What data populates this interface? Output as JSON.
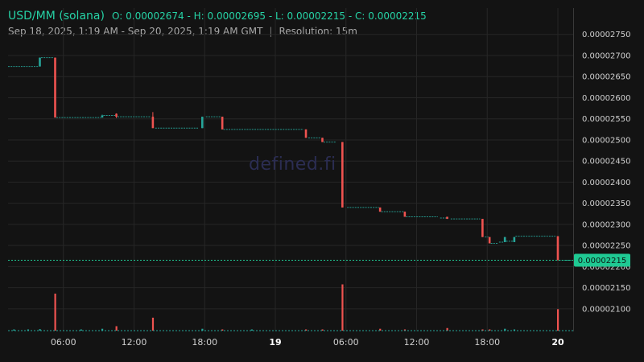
{
  "header": {
    "pair": "USD/MM (solana)",
    "ohlc": "O: 0.00002674 - H: 0.00002695 - L: 0.00002215 - C: 0.00002215",
    "range": "Sep 18, 2025, 1:19 AM - Sep 20, 2025, 1:19 AM GMT",
    "separator": "|",
    "resolution": "Resolution: 15m"
  },
  "watermark": "defined.fi",
  "colors": {
    "up": "#26a69a",
    "down": "#ef5350",
    "badge": "#1fc993",
    "grid": "#262626"
  },
  "chart_data": {
    "type": "candlestick",
    "title": "USD/MM (solana)",
    "y_axis": {
      "min": 2.075e-05,
      "max": 2.78e-05,
      "ticks": [
        "0.00002750",
        "0.00002700",
        "0.00002650",
        "0.00002600",
        "0.00002550",
        "0.00002500",
        "0.00002450",
        "0.00002400",
        "0.00002350",
        "0.00002300",
        "0.00002250",
        "0.00002200",
        "0.00002150",
        "0.00002100"
      ]
    },
    "x_axis": {
      "start_hour": 1.3,
      "end_hour": 49.3,
      "ticks": [
        {
          "hour": 6,
          "label": "06:00",
          "bold": false
        },
        {
          "hour": 12,
          "label": "12:00",
          "bold": false
        },
        {
          "hour": 18,
          "label": "18:00",
          "bold": false
        },
        {
          "hour": 24,
          "label": "19",
          "bold": true
        },
        {
          "hour": 30,
          "label": "06:00",
          "bold": false
        },
        {
          "hour": 36,
          "label": "12:00",
          "bold": false
        },
        {
          "hour": 42,
          "label": "18:00",
          "bold": false
        },
        {
          "hour": 48,
          "label": "20",
          "bold": true
        }
      ]
    },
    "current_price": "0.00002215",
    "segments": [
      {
        "t0": 1.3,
        "t1": 3.9,
        "p": 2.674e-05
      },
      {
        "t0": 4.1,
        "t1": 5.2,
        "p": 2.695e-05
      },
      {
        "t0": 5.4,
        "t1": 9.2,
        "p": 2.553e-05
      },
      {
        "t0": 9.4,
        "t1": 10.4,
        "p": 2.558e-05
      },
      {
        "t0": 10.6,
        "t1": 13.4,
        "p": 2.555e-05
      },
      {
        "t0": 13.8,
        "t1": 17.5,
        "p": 2.528e-05
      },
      {
        "t0": 18.1,
        "t1": 19.4,
        "p": 2.555e-05
      },
      {
        "t0": 19.6,
        "t1": 26.4,
        "p": 2.525e-05
      },
      {
        "t0": 26.8,
        "t1": 27.9,
        "p": 2.505e-05
      },
      {
        "t0": 28.1,
        "t1": 29.2,
        "p": 2.495e-05
      },
      {
        "t0": 30.1,
        "t1": 32.8,
        "p": 2.34e-05
      },
      {
        "t0": 33.0,
        "t1": 34.9,
        "p": 2.33e-05
      },
      {
        "t0": 35.1,
        "t1": 37.8,
        "p": 2.318e-05
      },
      {
        "t0": 38.0,
        "t1": 38.7,
        "p": 2.315e-05
      },
      {
        "t0": 38.9,
        "t1": 41.4,
        "p": 2.313e-05
      },
      {
        "t0": 41.8,
        "t1": 42.1,
        "p": 2.27e-05
      },
      {
        "t0": 42.3,
        "t1": 42.9,
        "p": 2.255e-05
      },
      {
        "t0": 43.0,
        "t1": 43.4,
        "p": 2.258e-05
      },
      {
        "t0": 43.6,
        "t1": 44.2,
        "p": 2.26e-05
      },
      {
        "t0": 44.4,
        "t1": 47.8,
        "p": 2.272e-05
      },
      {
        "t0": 48.1,
        "t1": 49.3,
        "p": 2.215e-05
      }
    ],
    "candles": [
      {
        "t": 4.0,
        "o": 2.674e-05,
        "h": 2.695e-05,
        "l": 2.674e-05,
        "c": 2.695e-05
      },
      {
        "t": 5.3,
        "o": 2.695e-05,
        "h": 2.695e-05,
        "l": 2.553e-05,
        "c": 2.553e-05
      },
      {
        "t": 9.3,
        "o": 2.553e-05,
        "h": 2.56e-05,
        "l": 2.553e-05,
        "c": 2.558e-05
      },
      {
        "t": 10.5,
        "o": 2.562e-05,
        "h": 2.563e-05,
        "l": 2.552e-05,
        "c": 2.555e-05
      },
      {
        "t": 13.6,
        "o": 2.555e-05,
        "h": 2.566e-05,
        "l": 2.528e-05,
        "c": 2.528e-05
      },
      {
        "t": 17.8,
        "o": 2.528e-05,
        "h": 2.555e-05,
        "l": 2.528e-05,
        "c": 2.555e-05
      },
      {
        "t": 19.5,
        "o": 2.555e-05,
        "h": 2.555e-05,
        "l": 2.525e-05,
        "c": 2.525e-05
      },
      {
        "t": 26.6,
        "o": 2.525e-05,
        "h": 2.525e-05,
        "l": 2.505e-05,
        "c": 2.505e-05
      },
      {
        "t": 28.0,
        "o": 2.505e-05,
        "h": 2.505e-05,
        "l": 2.495e-05,
        "c": 2.495e-05
      },
      {
        "t": 29.7,
        "o": 2.495e-05,
        "h": 2.495e-05,
        "l": 2.34e-05,
        "c": 2.34e-05
      },
      {
        "t": 32.9,
        "o": 2.34e-05,
        "h": 2.34e-05,
        "l": 2.33e-05,
        "c": 2.33e-05
      },
      {
        "t": 35.0,
        "o": 2.33e-05,
        "h": 2.33e-05,
        "l": 2.318e-05,
        "c": 2.318e-05
      },
      {
        "t": 38.6,
        "o": 2.318e-05,
        "h": 2.318e-05,
        "l": 2.313e-05,
        "c": 2.313e-05
      },
      {
        "t": 41.6,
        "o": 2.313e-05,
        "h": 2.313e-05,
        "l": 2.27e-05,
        "c": 2.27e-05
      },
      {
        "t": 42.2,
        "o": 2.27e-05,
        "h": 2.27e-05,
        "l": 2.255e-05,
        "c": 2.255e-05
      },
      {
        "t": 43.5,
        "o": 2.258e-05,
        "h": 2.27e-05,
        "l": 2.258e-05,
        "c": 2.27e-05
      },
      {
        "t": 44.3,
        "o": 2.258e-05,
        "h": 2.27e-05,
        "l": 2.258e-05,
        "c": 2.27e-05
      },
      {
        "t": 48.0,
        "o": 2.272e-05,
        "h": 2.272e-05,
        "l": 2.215e-05,
        "c": 2.215e-05
      }
    ],
    "volume": {
      "max": 100,
      "bars": [
        {
          "t": 1.8,
          "v": 3,
          "up": true
        },
        {
          "t": 3.0,
          "v": 3,
          "up": true
        },
        {
          "t": 4.0,
          "v": 4,
          "up": true
        },
        {
          "t": 5.3,
          "v": 100,
          "up": false
        },
        {
          "t": 7.5,
          "v": 2,
          "up": true
        },
        {
          "t": 9.3,
          "v": 5,
          "up": true
        },
        {
          "t": 10.5,
          "v": 12,
          "up": false
        },
        {
          "t": 13.6,
          "v": 35,
          "up": false
        },
        {
          "t": 17.8,
          "v": 5,
          "up": true
        },
        {
          "t": 19.5,
          "v": 3,
          "up": false
        },
        {
          "t": 22.0,
          "v": 2,
          "up": true
        },
        {
          "t": 26.6,
          "v": 3,
          "up": false
        },
        {
          "t": 28.0,
          "v": 3,
          "up": false
        },
        {
          "t": 29.7,
          "v": 125,
          "up": false
        },
        {
          "t": 32.9,
          "v": 5,
          "up": false
        },
        {
          "t": 35.0,
          "v": 3,
          "up": false
        },
        {
          "t": 38.6,
          "v": 7,
          "up": false
        },
        {
          "t": 41.6,
          "v": 3,
          "up": false
        },
        {
          "t": 42.2,
          "v": 3,
          "up": false
        },
        {
          "t": 43.5,
          "v": 5,
          "up": true
        },
        {
          "t": 44.3,
          "v": 3,
          "up": true
        },
        {
          "t": 48.0,
          "v": 58,
          "up": false
        }
      ]
    }
  }
}
